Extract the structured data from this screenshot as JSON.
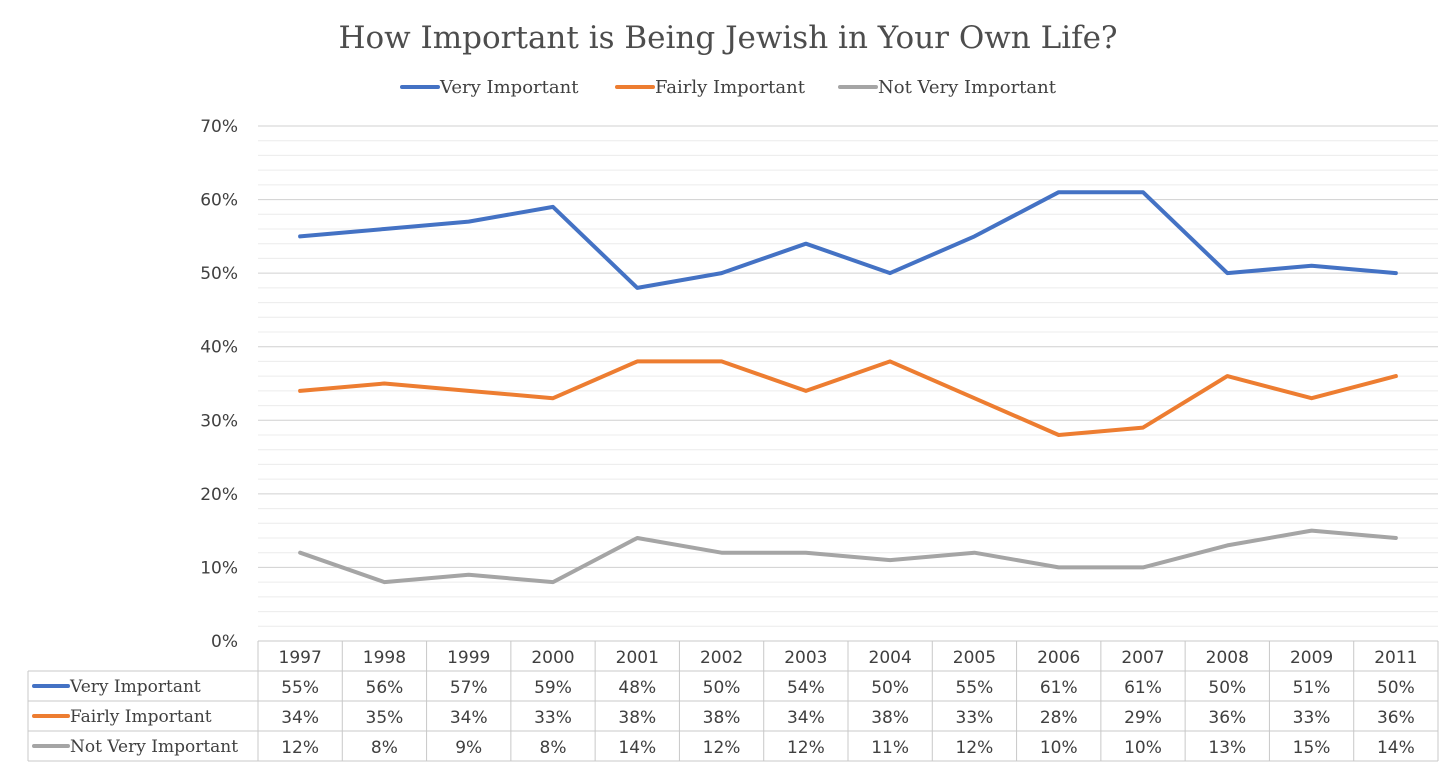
{
  "chart_data": {
    "type": "line",
    "title": "How Important is Being Jewish in Your Own Life?",
    "categories": [
      "1997",
      "1998",
      "1999",
      "2000",
      "2001",
      "2002",
      "2003",
      "2004",
      "2005",
      "2006",
      "2007",
      "2008",
      "2009",
      "2011"
    ],
    "ylim": [
      0,
      70
    ],
    "yticks": [
      0,
      10,
      20,
      30,
      40,
      50,
      60,
      70
    ],
    "ytick_labels": [
      "0%",
      "10%",
      "20%",
      "30%",
      "40%",
      "50%",
      "60%",
      "70%"
    ],
    "legend_position": "top",
    "series": [
      {
        "name": "Very Important",
        "color": "#4472c4",
        "values": [
          55,
          56,
          57,
          59,
          48,
          50,
          54,
          50,
          55,
          61,
          61,
          50,
          51,
          50
        ],
        "labels": [
          "55%",
          "56%",
          "57%",
          "59%",
          "48%",
          "50%",
          "54%",
          "50%",
          "55%",
          "61%",
          "61%",
          "50%",
          "51%",
          "50%"
        ]
      },
      {
        "name": "Fairly Important",
        "color": "#ed7d31",
        "values": [
          34,
          35,
          34,
          33,
          38,
          38,
          34,
          38,
          33,
          28,
          29,
          36,
          33,
          36
        ],
        "labels": [
          "34%",
          "35%",
          "34%",
          "33%",
          "38%",
          "38%",
          "34%",
          "38%",
          "33%",
          "28%",
          "29%",
          "36%",
          "33%",
          "36%"
        ]
      },
      {
        "name": "Not Very Important",
        "color": "#a5a5a5",
        "values": [
          12,
          8,
          9,
          8,
          14,
          12,
          12,
          11,
          12,
          10,
          10,
          13,
          15,
          14
        ],
        "labels": [
          "12%",
          "8%",
          "9%",
          "8%",
          "14%",
          "12%",
          "12%",
          "11%",
          "12%",
          "10%",
          "10%",
          "13%",
          "15%",
          "14%"
        ]
      }
    ]
  }
}
